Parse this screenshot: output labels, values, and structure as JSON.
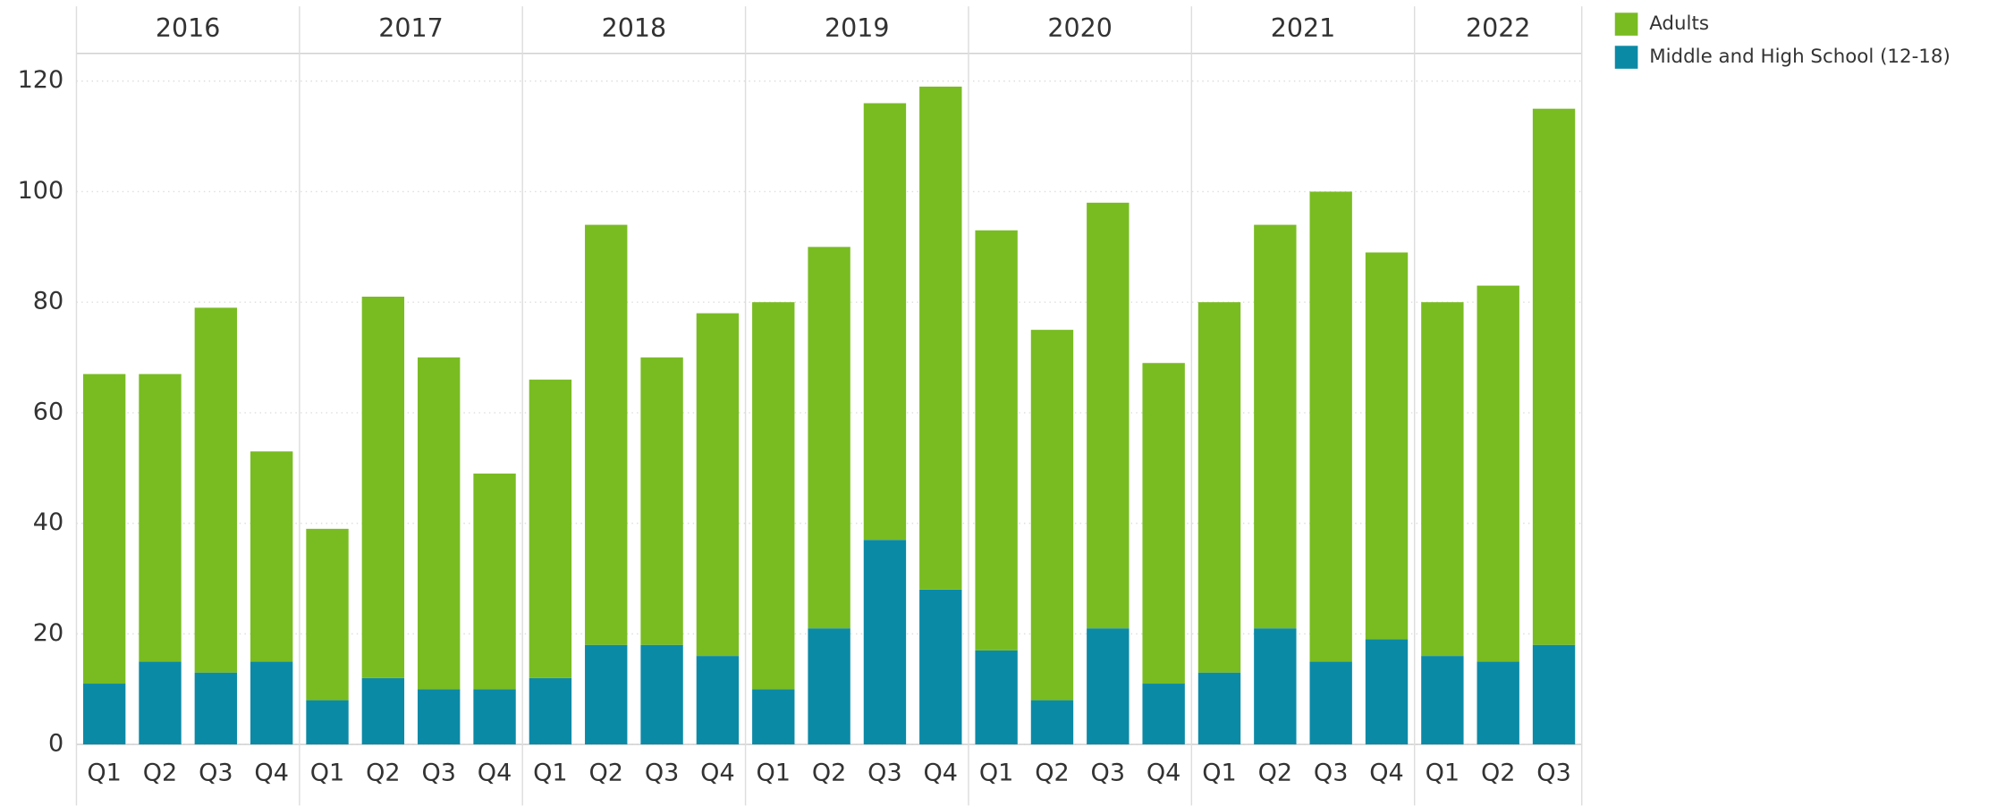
{
  "chart_data": {
    "type": "stacked_bar",
    "groups": [
      {
        "label": "2016",
        "categories": [
          "Q1",
          "Q2",
          "Q3",
          "Q4"
        ]
      },
      {
        "label": "2017",
        "categories": [
          "Q1",
          "Q2",
          "Q3",
          "Q4"
        ]
      },
      {
        "label": "2018",
        "categories": [
          "Q1",
          "Q2",
          "Q3",
          "Q4"
        ]
      },
      {
        "label": "2019",
        "categories": [
          "Q1",
          "Q2",
          "Q3",
          "Q4"
        ]
      },
      {
        "label": "2020",
        "categories": [
          "Q1",
          "Q2",
          "Q3",
          "Q4"
        ]
      },
      {
        "label": "2021",
        "categories": [
          "Q1",
          "Q2",
          "Q3",
          "Q4"
        ]
      },
      {
        "label": "2022",
        "categories": [
          "Q1",
          "Q2",
          "Q3"
        ]
      }
    ],
    "series": [
      {
        "name": "Middle and High School (12-18)",
        "color": "#0b8aa6",
        "values": [
          11,
          15,
          13,
          15,
          8,
          12,
          10,
          10,
          12,
          18,
          18,
          16,
          10,
          21,
          37,
          28,
          17,
          8,
          21,
          11,
          13,
          21,
          15,
          19,
          16,
          15,
          18
        ]
      },
      {
        "name": "Adults",
        "color": "#79bc22",
        "values": [
          56,
          52,
          66,
          38,
          31,
          69,
          60,
          39,
          54,
          76,
          52,
          62,
          70,
          69,
          79,
          91,
          76,
          67,
          77,
          58,
          67,
          73,
          85,
          70,
          64,
          68,
          97
        ]
      }
    ],
    "ylim": [
      0,
      125
    ],
    "yticks": [
      0,
      20,
      40,
      60,
      80,
      100,
      120
    ],
    "grid": true
  }
}
